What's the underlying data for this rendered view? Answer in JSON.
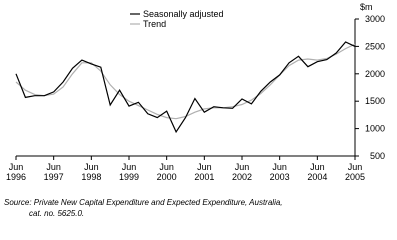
{
  "chart_data": {
    "type": "line",
    "y_unit": "$m",
    "categories": [
      "Jun 1996",
      null,
      null,
      null,
      "Jun 1997",
      null,
      null,
      null,
      "Jun 1998",
      null,
      null,
      null,
      "Jun 1999",
      null,
      null,
      null,
      "Jun 2000",
      null,
      null,
      null,
      "Jun 2001",
      null,
      null,
      null,
      "Jun 2002",
      null,
      null,
      null,
      "Jun 2003",
      null,
      null,
      null,
      "Jun 2004",
      null,
      null,
      null,
      "Jun 2005"
    ],
    "series": [
      {
        "name": "Seasonally adjusted",
        "color": "#000000",
        "values": [
          2000,
          1570,
          1600,
          1600,
          1670,
          1850,
          2100,
          2250,
          2180,
          2120,
          1430,
          1700,
          1410,
          1480,
          1270,
          1200,
          1320,
          940,
          1200,
          1550,
          1300,
          1400,
          1380,
          1370,
          1540,
          1450,
          1680,
          1850,
          1980,
          2200,
          2320,
          2130,
          2220,
          2260,
          2380,
          2580,
          2500
        ]
      },
      {
        "name": "Trend",
        "color": "#b0b0b0",
        "values": [
          1850,
          1700,
          1620,
          1600,
          1630,
          1760,
          2000,
          2200,
          2200,
          2050,
          1800,
          1620,
          1500,
          1420,
          1340,
          1260,
          1200,
          1180,
          1220,
          1300,
          1360,
          1380,
          1380,
          1400,
          1440,
          1520,
          1640,
          1800,
          1980,
          2150,
          2250,
          2270,
          2250,
          2280,
          2360,
          2460,
          2540
        ]
      }
    ],
    "ylim": [
      500,
      3000
    ],
    "yticks": [
      500,
      1000,
      1500,
      2000,
      2500,
      3000
    ],
    "legend": "top",
    "source": [
      "Source: Private New Capital Expenditure and Expected Expenditure, Australia,",
      "cat. no. 5625.0."
    ]
  }
}
